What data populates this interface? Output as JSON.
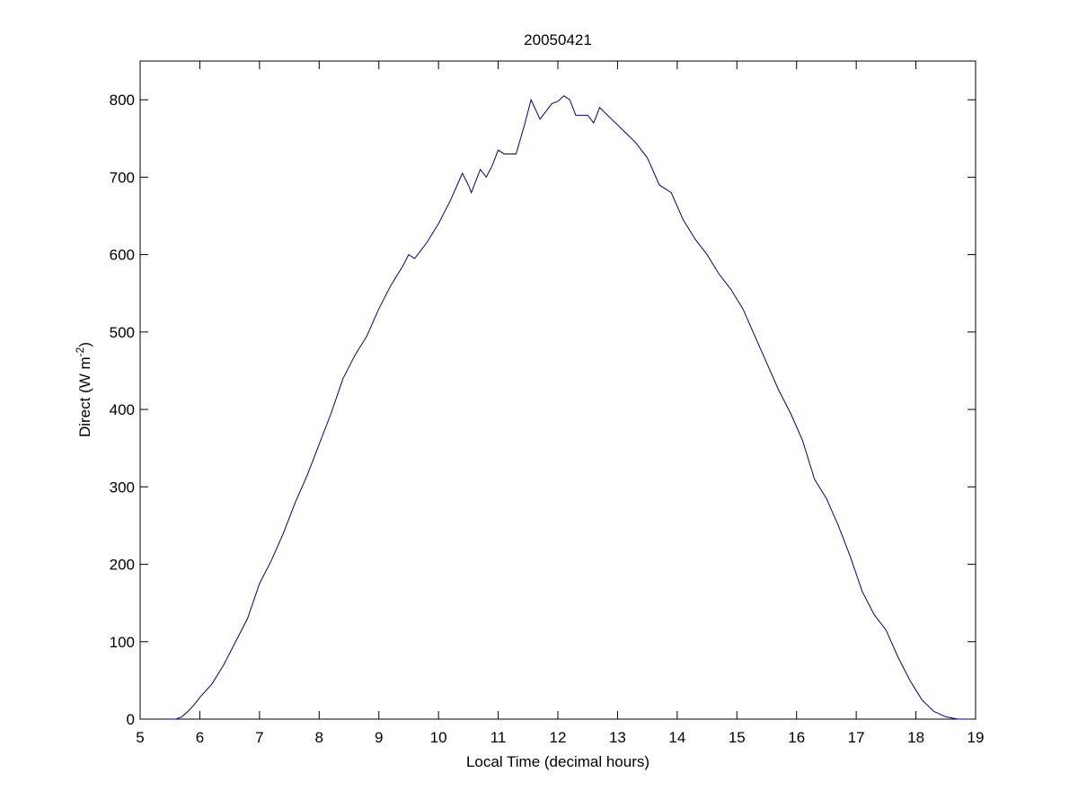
{
  "chart_data": {
    "type": "line",
    "title": "20050421",
    "x_label": "Local Time (decimal hours)",
    "y_label": [
      "Direct (W m",
      "-2",
      ")"
    ],
    "xlim": [
      5,
      19
    ],
    "xticks": [
      5,
      6,
      7,
      8,
      9,
      10,
      11,
      12,
      13,
      14,
      15,
      16,
      17,
      18,
      19
    ],
    "ylim": [
      0,
      850
    ],
    "yticks": [
      0,
      100,
      200,
      300,
      400,
      500,
      600,
      700,
      800
    ],
    "grid": false,
    "series": [
      {
        "color": "#000080",
        "x": [
          5.5,
          5.6,
          5.7,
          5.8,
          5.9,
          6.0,
          6.2,
          6.4,
          6.6,
          6.8,
          7.0,
          7.2,
          7.4,
          7.6,
          7.8,
          8.0,
          8.2,
          8.4,
          8.6,
          8.8,
          9.0,
          9.2,
          9.4,
          9.5,
          9.6,
          9.8,
          10.0,
          10.2,
          10.4,
          10.5,
          10.55,
          10.7,
          10.8,
          10.9,
          11.0,
          11.1,
          11.3,
          11.45,
          11.55,
          11.7,
          11.9,
          12.0,
          12.1,
          12.2,
          12.3,
          12.5,
          12.6,
          12.7,
          12.9,
          13.1,
          13.3,
          13.5,
          13.7,
          13.8,
          13.9,
          14.1,
          14.3,
          14.5,
          14.7,
          14.9,
          15.1,
          15.3,
          15.5,
          15.7,
          15.9,
          16.1,
          16.3,
          16.5,
          16.7,
          16.9,
          17.1,
          17.3,
          17.5,
          17.7,
          17.9,
          18.1,
          18.3,
          18.5,
          18.7,
          18.9
        ],
        "values": [
          0,
          0,
          3,
          10,
          18,
          28,
          45,
          70,
          100,
          130,
          175,
          205,
          240,
          280,
          315,
          355,
          395,
          440,
          470,
          495,
          530,
          560,
          585,
          600,
          595,
          615,
          640,
          670,
          705,
          690,
          680,
          710,
          700,
          715,
          735,
          730,
          730,
          770,
          800,
          775,
          795,
          798,
          805,
          800,
          780,
          780,
          770,
          790,
          775,
          760,
          745,
          725,
          690,
          685,
          680,
          645,
          620,
          600,
          575,
          555,
          530,
          495,
          460,
          425,
          395,
          360,
          310,
          285,
          250,
          210,
          165,
          135,
          115,
          80,
          50,
          25,
          10,
          3,
          0,
          0
        ]
      }
    ]
  }
}
